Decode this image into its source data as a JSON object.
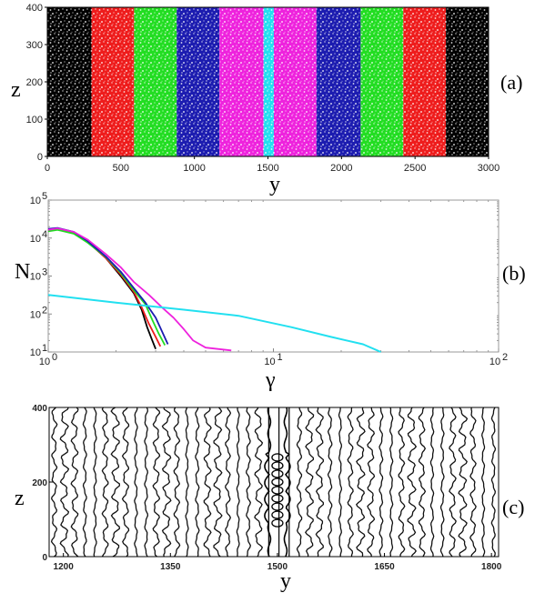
{
  "chart_data": [
    {
      "type": "heatmap",
      "panel_label": "(a)",
      "xlabel": "y",
      "ylabel": "z",
      "xlim": [
        0,
        3000
      ],
      "ylim": [
        0,
        400
      ],
      "xticks": [
        "0",
        "500",
        "1000",
        "1500",
        "2000",
        "2500",
        "3000"
      ],
      "yticks": [
        "0",
        "100",
        "200",
        "300",
        "400"
      ],
      "bands": [
        {
          "from": 0,
          "to": 300,
          "color": "#000000"
        },
        {
          "from": 300,
          "to": 590,
          "color": "#ee1c1c"
        },
        {
          "from": 590,
          "to": 880,
          "color": "#22dd22"
        },
        {
          "from": 880,
          "to": 1170,
          "color": "#1c1cb0"
        },
        {
          "from": 1170,
          "to": 1470,
          "color": "#ee22dd"
        },
        {
          "from": 1470,
          "to": 1540,
          "color": "#22e0f0"
        },
        {
          "from": 1540,
          "to": 1830,
          "color": "#ee22dd"
        },
        {
          "from": 1830,
          "to": 2130,
          "color": "#1c1cb0"
        },
        {
          "from": 2130,
          "to": 2420,
          "color": "#22dd22"
        },
        {
          "from": 2420,
          "to": 2710,
          "color": "#ee1c1c"
        },
        {
          "from": 2710,
          "to": 3000,
          "color": "#000000"
        }
      ]
    },
    {
      "type": "line",
      "panel_label": "(b)",
      "xlabel": "γ",
      "ylabel": "N",
      "xscale": "log",
      "yscale": "log",
      "xlim": [
        1,
        100
      ],
      "ylim": [
        10,
        100000
      ],
      "xticks": [
        {
          "base": "10",
          "exp": "0"
        },
        {
          "base": "10",
          "exp": "1"
        },
        {
          "base": "10",
          "exp": "2"
        }
      ],
      "yticks": [
        {
          "base": "10",
          "exp": "1"
        },
        {
          "base": "10",
          "exp": "2"
        },
        {
          "base": "10",
          "exp": "3"
        },
        {
          "base": "10",
          "exp": "4"
        },
        {
          "base": "10",
          "exp": "5"
        }
      ],
      "series": [
        {
          "color": "#000000",
          "x": [
            1.0,
            1.1,
            1.3,
            1.5,
            1.8,
            2.1,
            2.4,
            2.6,
            2.75,
            2.9,
            3.0
          ],
          "y": [
            17000,
            18000,
            14000,
            8000,
            3000,
            1000,
            350,
            130,
            45,
            20,
            12
          ]
        },
        {
          "color": "#ee1c1c",
          "x": [
            1.0,
            1.1,
            1.3,
            1.5,
            1.8,
            2.1,
            2.4,
            2.6,
            2.8,
            3.0,
            3.15
          ],
          "y": [
            16000,
            17000,
            13500,
            7800,
            3000,
            1100,
            380,
            150,
            55,
            25,
            14
          ]
        },
        {
          "color": "#22dd22",
          "x": [
            1.0,
            1.1,
            1.3,
            1.5,
            1.8,
            2.1,
            2.4,
            2.7,
            2.9,
            3.1,
            3.3
          ],
          "y": [
            15000,
            16500,
            13000,
            7500,
            3200,
            1200,
            420,
            180,
            70,
            30,
            15
          ]
        },
        {
          "color": "#1c1cb0",
          "x": [
            1.0,
            1.1,
            1.3,
            1.5,
            1.8,
            2.1,
            2.4,
            2.7,
            3.0,
            3.2,
            3.4
          ],
          "y": [
            17500,
            18500,
            14500,
            8200,
            3300,
            1300,
            480,
            200,
            80,
            35,
            16
          ]
        },
        {
          "color": "#ee22dd",
          "x": [
            1.0,
            1.1,
            1.3,
            1.5,
            1.8,
            2.1,
            2.4,
            2.8,
            3.2,
            3.6,
            4.0,
            4.4,
            5.0,
            6.5
          ],
          "y": [
            16500,
            18000,
            14500,
            9000,
            3800,
            1700,
            700,
            320,
            150,
            80,
            40,
            20,
            13,
            11
          ]
        },
        {
          "color": "#22e0f0",
          "x": [
            1.0,
            2.0,
            4.0,
            7.0,
            12.0,
            18.0,
            25.0,
            30.0
          ],
          "y": [
            320,
            200,
            130,
            90,
            45,
            25,
            16,
            10
          ]
        }
      ]
    },
    {
      "type": "line",
      "panel_label": "(c)",
      "xlabel": "y",
      "ylabel": "z",
      "xlim": [
        1180,
        1810
      ],
      "ylim": [
        0,
        400
      ],
      "xticks": [
        "1200",
        "1350",
        "1500",
        "1650",
        "1800"
      ],
      "yticks": [
        "0",
        "200",
        "400"
      ],
      "lines_every": 14,
      "line_count": 44,
      "defect_center": 1500
    }
  ]
}
